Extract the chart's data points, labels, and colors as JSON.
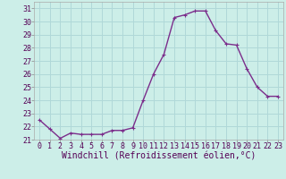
{
  "x": [
    0,
    1,
    2,
    3,
    4,
    5,
    6,
    7,
    8,
    9,
    10,
    11,
    12,
    13,
    14,
    15,
    16,
    17,
    18,
    19,
    20,
    21,
    22,
    23
  ],
  "y": [
    22.5,
    21.8,
    21.1,
    21.5,
    21.4,
    21.4,
    21.4,
    21.7,
    21.7,
    21.9,
    24.0,
    26.0,
    27.5,
    30.3,
    30.5,
    30.8,
    30.8,
    29.3,
    28.3,
    28.2,
    26.4,
    25.0,
    24.3,
    24.3
  ],
  "line_color": "#7b2d8b",
  "marker": "+",
  "marker_size": 3,
  "xlabel": "Windchill (Refroidissement éolien,°C)",
  "xlabel_fontsize": 7,
  "ylim": [
    21,
    31.5
  ],
  "yticks": [
    21,
    22,
    23,
    24,
    25,
    26,
    27,
    28,
    29,
    30,
    31
  ],
  "xticks": [
    0,
    1,
    2,
    3,
    4,
    5,
    6,
    7,
    8,
    9,
    10,
    11,
    12,
    13,
    14,
    15,
    16,
    17,
    18,
    19,
    20,
    21,
    22,
    23
  ],
  "grid_color": "#b0d8d8",
  "bg_color": "#cceee8",
  "tick_fontsize": 6,
  "line_width": 1.0
}
